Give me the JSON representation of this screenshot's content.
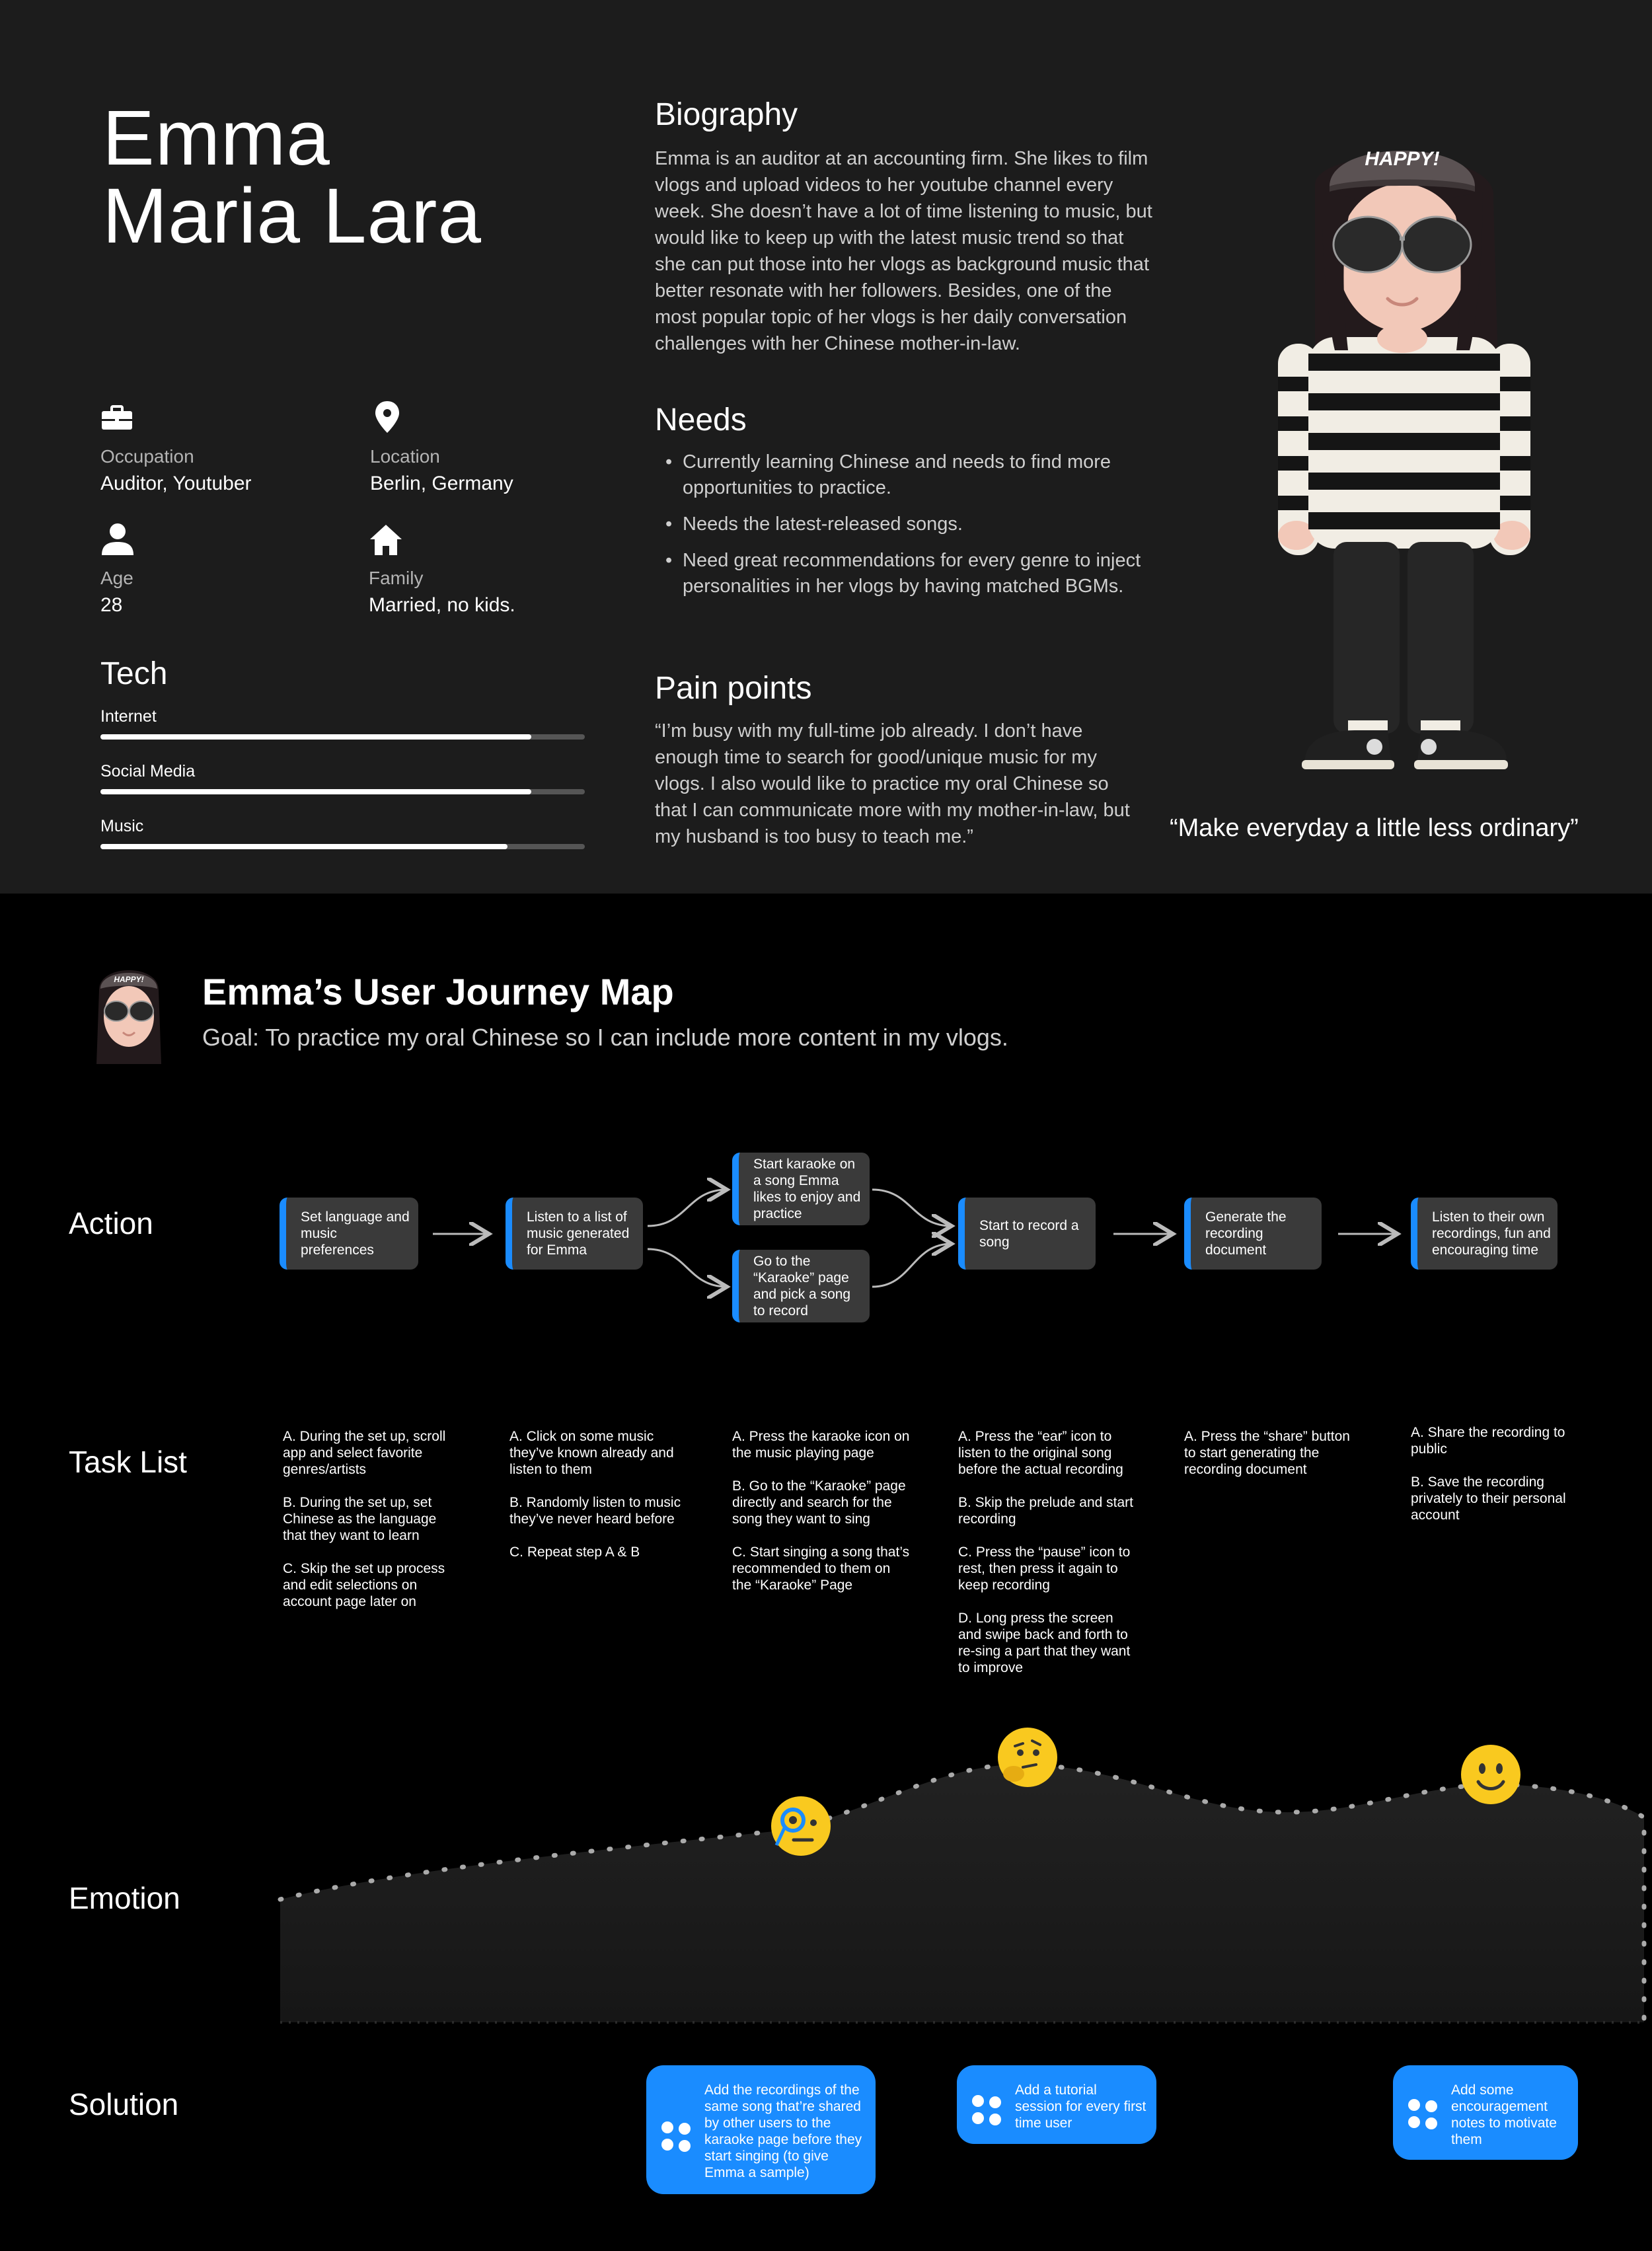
{
  "persona": {
    "name_line1": "Emma",
    "name_line2": "Maria Lara",
    "info": [
      {
        "icon": "briefcase-icon",
        "label": "Occupation",
        "value": "Auditor, Youtuber"
      },
      {
        "icon": "location-pin-icon",
        "label": "Location",
        "value": "Berlin, Germany"
      },
      {
        "icon": "person-icon",
        "label": "Age",
        "value": "28"
      },
      {
        "icon": "home-icon",
        "label": "Family",
        "value": "Married, no kids."
      }
    ],
    "tech_title": "Tech",
    "tech": [
      {
        "label": "Internet",
        "level": 0.89
      },
      {
        "label": "Social Media",
        "level": 0.89
      },
      {
        "label": "Music",
        "level": 0.84
      }
    ],
    "biography_title": "Biography",
    "biography": "Emma is an auditor at an accounting firm. She likes to film vlogs and upload videos to her youtube channel every week. She doesn’t have a lot of time listening to music, but would like to keep up with the latest music trend so that she can put those into her vlogs as background music that better resonate with her followers. Besides, one of the most popular topic of her vlogs is her daily conversation challenges with her Chinese mother-in-law.",
    "needs_title": "Needs",
    "needs": [
      "Currently learning Chinese and needs to find more opportunities to practice.",
      "Needs the latest-released songs.",
      "Need great recommendations for every genre to inject personalities in her vlogs by having matched BGMs."
    ],
    "pain_title": "Pain points",
    "pain": "“I’m busy with my full-time job already. I don’t have enough time to search for good/unique music for my vlogs. I also would like to practice my oral Chinese so that I can communicate more with my mother-in-law, but my husband is too busy to teach me.”",
    "hat_text": "HAPPY!",
    "quote": "“Make everyday a little less ordinary”"
  },
  "journey": {
    "title": "Emma’s User Journey Map",
    "goal": "Goal:  To practice my oral Chinese so I can include more content in my vlogs.",
    "avatar_hat_text": "HAPPY!",
    "row_labels": {
      "action": "Action",
      "tasks": "Task List",
      "emotion": "Emotion",
      "solution": "Solution"
    },
    "actions": [
      "Set language and music preferences",
      "Listen to a list of music generated for Emma",
      "Start karaoke on a song Emma likes to enjoy and practice",
      "Go to the “Karaoke” page and pick a song to record",
      "Start to record a song",
      "Generate the recording document",
      "Listen to their own recordings, fun and encouraging time"
    ],
    "tasks": [
      "A. During the set up, scroll app and select favorite genres/artists\n\nB. During the set up, set Chinese as the language that they want to learn\n\nC. Skip the set up process and edit selections on account page later on",
      "A. Click on some music they’ve known already and listen to them\n\nB. Randomly listen to music they’ve never heard before\n\nC. Repeat step A & B",
      "A. Press the karaoke icon on the music playing page\n\nB. Go to the “Karaoke” page directly and search for the song they want to sing\n\nC. Start singing a song that’s recommended to them on the “Karaoke” Page",
      "A. Press the “ear” icon to listen to the original song before the actual recording\n\nB. Skip the prelude and start recording\n\nC. Press the “pause” icon to rest, then press it again to keep recording\n\nD. Long press the screen and swipe back and forth to re-sing a part that they want to improve",
      "A. Press the “share” button to start generating the recording document",
      "A. Share the recording to public\n\nB. Save the recording privately to their personal account"
    ],
    "emotions": [
      {
        "icon": "face-with-monocle-icon"
      },
      {
        "icon": "thinking-face-icon"
      },
      {
        "icon": "smiling-face-icon"
      }
    ],
    "solutions": [
      "Add the  recordings of the same song that’re shared by other users to the karaoke page before they start singing (to give Emma a sample)",
      "Add a tutorial session for every first time user",
      "Add some encouragement notes to motivate them"
    ],
    "colors": {
      "accent": "#1a8cff",
      "card": "#3a3a3a",
      "persona_bg": "#1c1c1c",
      "page_bg": "#000000"
    }
  }
}
